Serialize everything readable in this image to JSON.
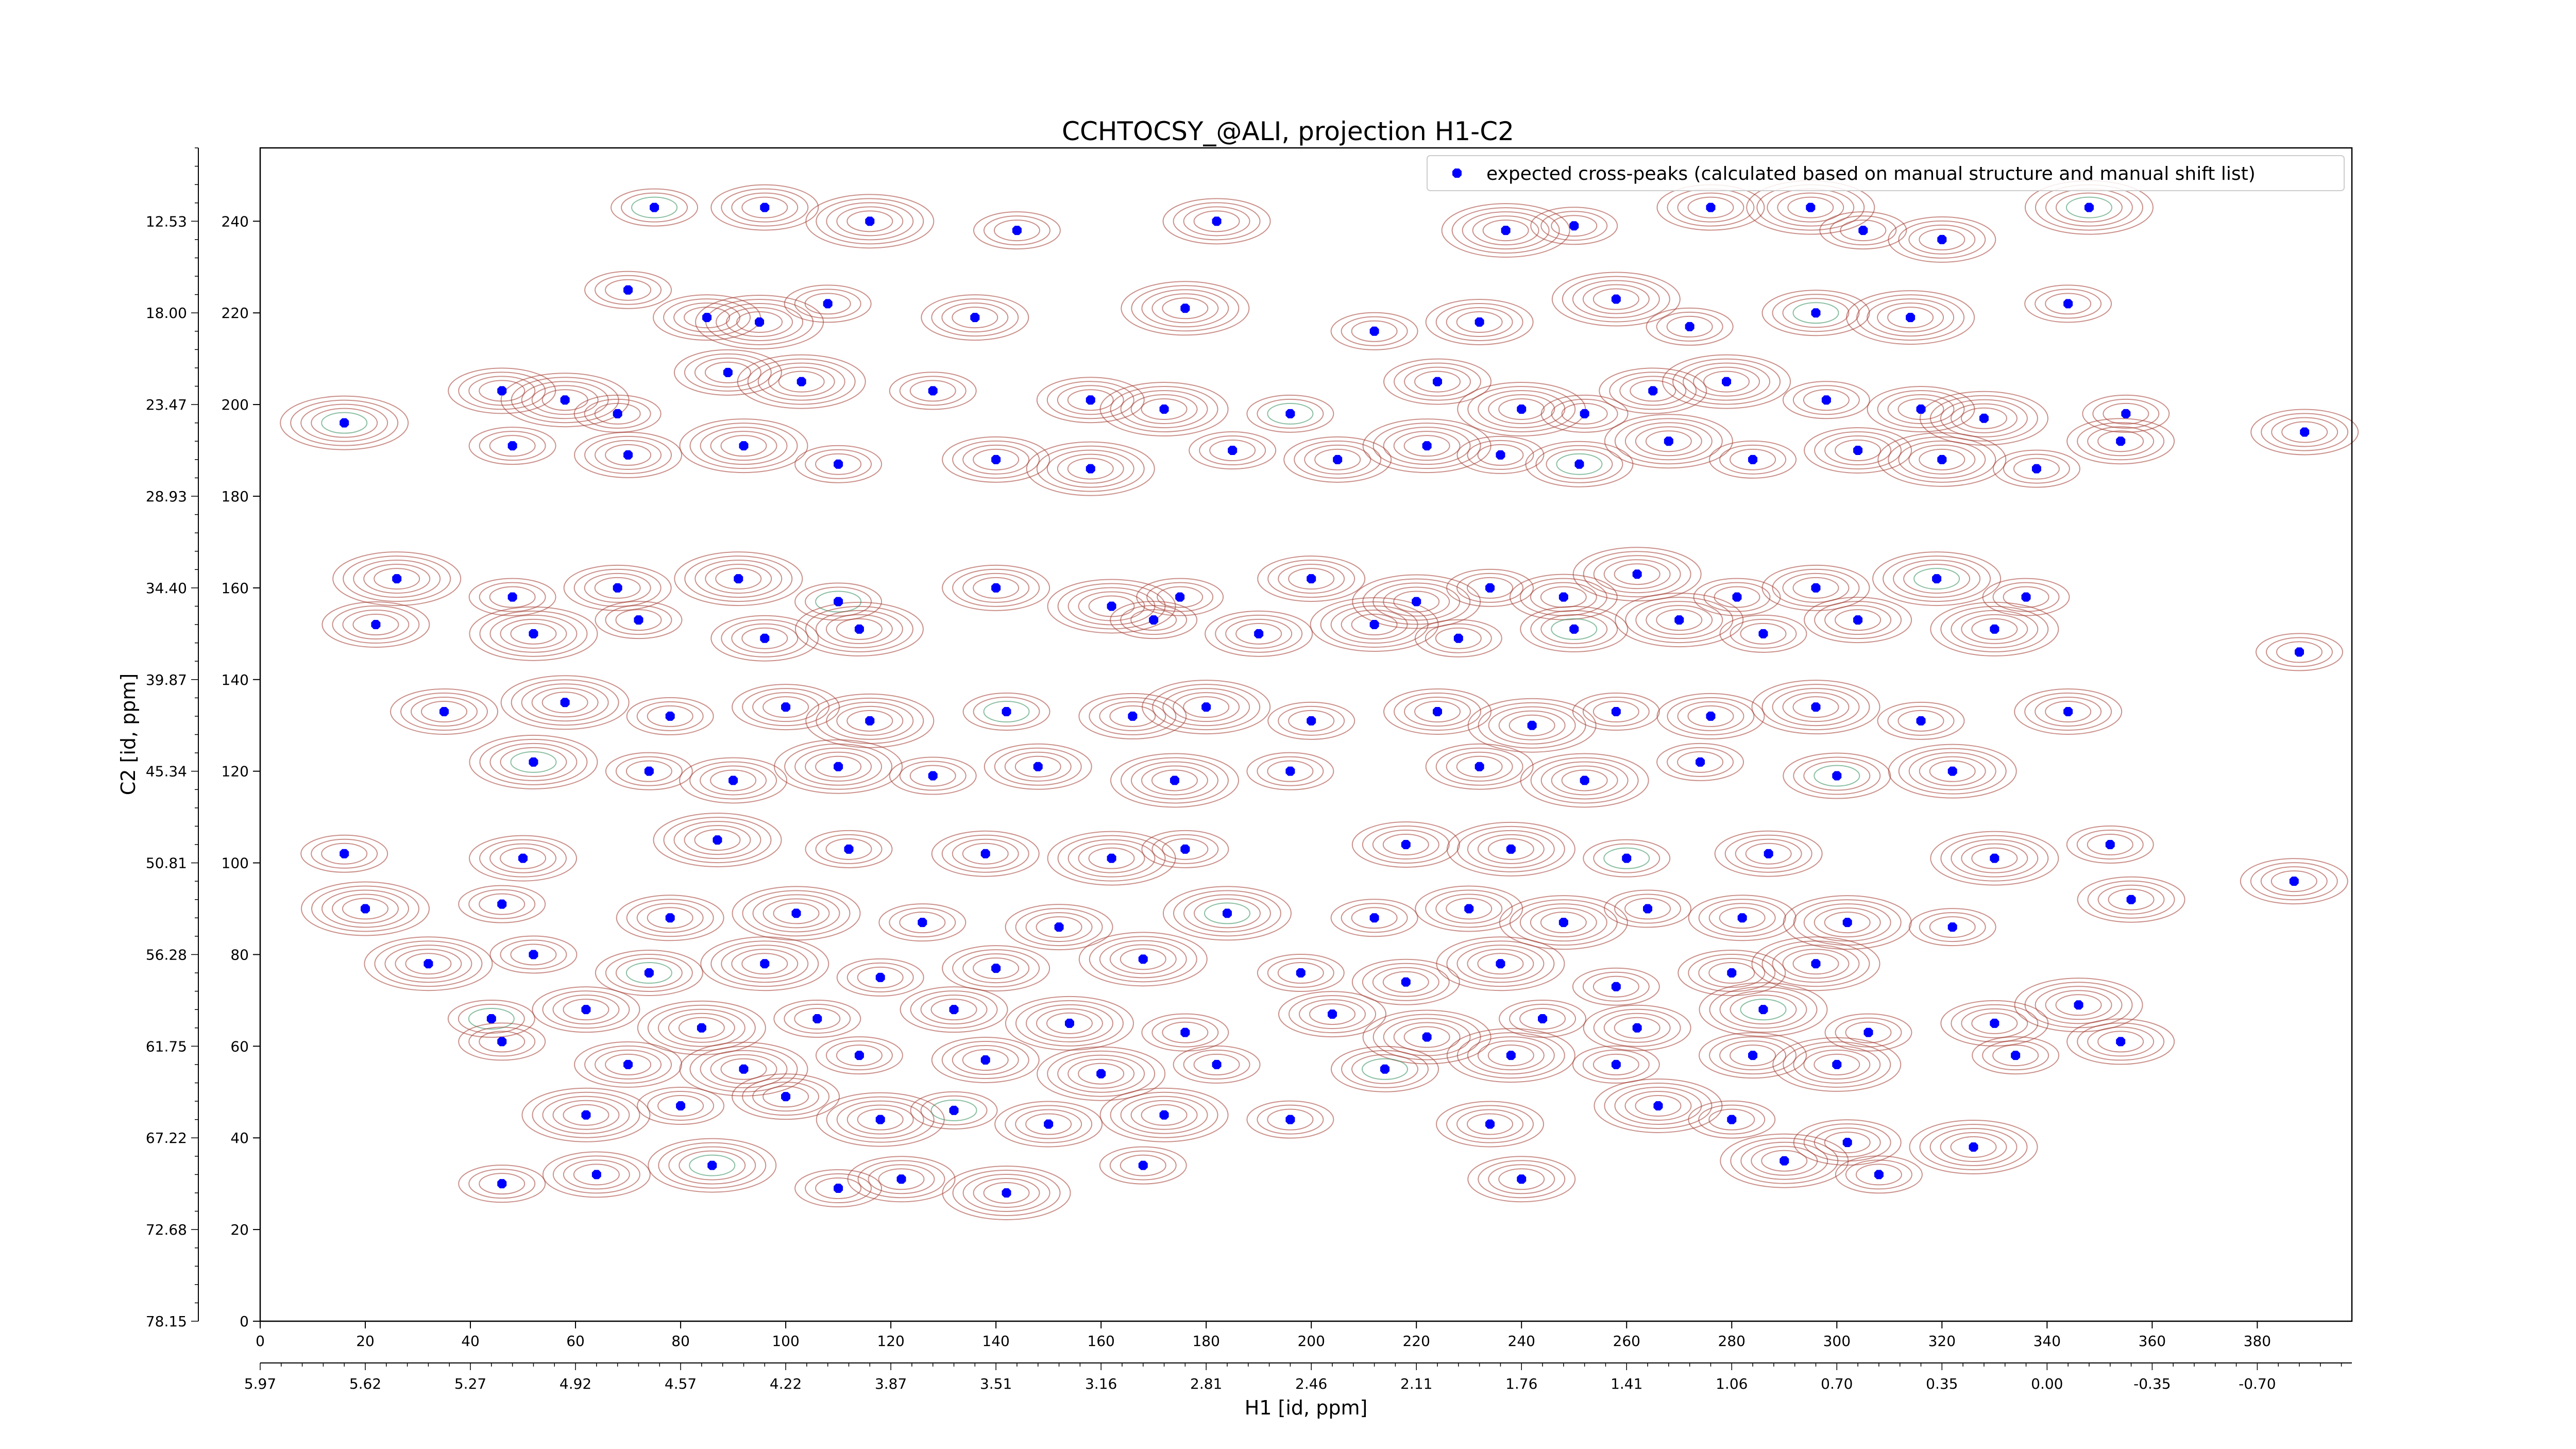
{
  "chart_data": {
    "type": "scatter",
    "title": "CCHTOCSY_@ALI, projection H1-C2",
    "xlabel": "H1 [id, ppm]",
    "ylabel": "C2 [id, ppm]",
    "xlim": [
      0,
      398
    ],
    "ylim": [
      0,
      256
    ],
    "x_ticks": [
      0,
      20,
      40,
      60,
      80,
      100,
      120,
      140,
      160,
      180,
      200,
      220,
      240,
      260,
      280,
      300,
      320,
      340,
      360,
      380
    ],
    "y_ticks": [
      0,
      20,
      40,
      60,
      80,
      100,
      120,
      140,
      160,
      180,
      200,
      220,
      240
    ],
    "x_ppm_ticks": [
      "5.97",
      "5.62",
      "5.27",
      "4.92",
      "4.57",
      "4.22",
      "3.87",
      "3.51",
      "3.16",
      "2.81",
      "2.46",
      "2.11",
      "1.76",
      "1.41",
      "1.06",
      "0.70",
      "0.35",
      "0.00",
      "-0.35",
      "-0.70"
    ],
    "y_ppm_ticks": [
      "78.15",
      "72.68",
      "67.22",
      "61.75",
      "56.28",
      "50.81",
      "45.34",
      "39.87",
      "34.40",
      "28.93",
      "23.47",
      "18.00",
      "12.53"
    ],
    "legend": {
      "label": "expected cross-peaks (calculated based on manual structure and manual shift list)",
      "position": "top-right"
    },
    "grid": false,
    "colors": {
      "markers": "#0000ff",
      "positive_contours": "#a0362b",
      "negative_contours": "#2e8b57"
    },
    "series": [
      {
        "name": "expected cross-peaks (calculated based on manual structure and manual shift list)",
        "points": [
          [
            75,
            243
          ],
          [
            96,
            243
          ],
          [
            116,
            240
          ],
          [
            144,
            238
          ],
          [
            182,
            240
          ],
          [
            237,
            238
          ],
          [
            250,
            239
          ],
          [
            276,
            243
          ],
          [
            295,
            243
          ],
          [
            305,
            238
          ],
          [
            320,
            236
          ],
          [
            348,
            243
          ],
          [
            70,
            225
          ],
          [
            85,
            219
          ],
          [
            95,
            218
          ],
          [
            108,
            222
          ],
          [
            136,
            219
          ],
          [
            176,
            221
          ],
          [
            212,
            216
          ],
          [
            232,
            218
          ],
          [
            258,
            223
          ],
          [
            272,
            217
          ],
          [
            296,
            220
          ],
          [
            314,
            219
          ],
          [
            344,
            222
          ],
          [
            46,
            203
          ],
          [
            58,
            201
          ],
          [
            68,
            198
          ],
          [
            89,
            207
          ],
          [
            103,
            205
          ],
          [
            128,
            203
          ],
          [
            158,
            201
          ],
          [
            172,
            199
          ],
          [
            196,
            198
          ],
          [
            224,
            205
          ],
          [
            240,
            199
          ],
          [
            252,
            198
          ],
          [
            265,
            203
          ],
          [
            279,
            205
          ],
          [
            298,
            201
          ],
          [
            316,
            199
          ],
          [
            328,
            197
          ],
          [
            355,
            198
          ],
          [
            389,
            194
          ],
          [
            16,
            196
          ],
          [
            48,
            191
          ],
          [
            70,
            189
          ],
          [
            92,
            191
          ],
          [
            110,
            187
          ],
          [
            140,
            188
          ],
          [
            158,
            186
          ],
          [
            185,
            190
          ],
          [
            205,
            188
          ],
          [
            222,
            191
          ],
          [
            236,
            189
          ],
          [
            251,
            187
          ],
          [
            268,
            192
          ],
          [
            284,
            188
          ],
          [
            304,
            190
          ],
          [
            320,
            188
          ],
          [
            338,
            186
          ],
          [
            354,
            192
          ],
          [
            26,
            162
          ],
          [
            48,
            158
          ],
          [
            68,
            160
          ],
          [
            91,
            162
          ],
          [
            110,
            157
          ],
          [
            140,
            160
          ],
          [
            162,
            156
          ],
          [
            175,
            158
          ],
          [
            200,
            162
          ],
          [
            220,
            157
          ],
          [
            234,
            160
          ],
          [
            248,
            158
          ],
          [
            262,
            163
          ],
          [
            281,
            158
          ],
          [
            296,
            160
          ],
          [
            319,
            162
          ],
          [
            336,
            158
          ],
          [
            22,
            152
          ],
          [
            52,
            150
          ],
          [
            72,
            153
          ],
          [
            96,
            149
          ],
          [
            114,
            151
          ],
          [
            170,
            153
          ],
          [
            190,
            150
          ],
          [
            212,
            152
          ],
          [
            228,
            149
          ],
          [
            250,
            151
          ],
          [
            270,
            153
          ],
          [
            286,
            150
          ],
          [
            304,
            153
          ],
          [
            330,
            151
          ],
          [
            388,
            146
          ],
          [
            35,
            133
          ],
          [
            58,
            135
          ],
          [
            78,
            132
          ],
          [
            100,
            134
          ],
          [
            116,
            131
          ],
          [
            142,
            133
          ],
          [
            166,
            132
          ],
          [
            180,
            134
          ],
          [
            200,
            131
          ],
          [
            224,
            133
          ],
          [
            242,
            130
          ],
          [
            258,
            133
          ],
          [
            276,
            132
          ],
          [
            296,
            134
          ],
          [
            316,
            131
          ],
          [
            344,
            133
          ],
          [
            52,
            122
          ],
          [
            74,
            120
          ],
          [
            90,
            118
          ],
          [
            110,
            121
          ],
          [
            128,
            119
          ],
          [
            148,
            121
          ],
          [
            174,
            118
          ],
          [
            196,
            120
          ],
          [
            232,
            121
          ],
          [
            252,
            118
          ],
          [
            274,
            122
          ],
          [
            300,
            119
          ],
          [
            322,
            120
          ],
          [
            16,
            102
          ],
          [
            50,
            101
          ],
          [
            87,
            105
          ],
          [
            112,
            103
          ],
          [
            138,
            102
          ],
          [
            162,
            101
          ],
          [
            176,
            103
          ],
          [
            218,
            104
          ],
          [
            238,
            103
          ],
          [
            260,
            101
          ],
          [
            287,
            102
          ],
          [
            330,
            101
          ],
          [
            352,
            104
          ],
          [
            387,
            96
          ],
          [
            20,
            90
          ],
          [
            46,
            91
          ],
          [
            78,
            88
          ],
          [
            102,
            89
          ],
          [
            126,
            87
          ],
          [
            152,
            86
          ],
          [
            184,
            89
          ],
          [
            212,
            88
          ],
          [
            230,
            90
          ],
          [
            248,
            87
          ],
          [
            264,
            90
          ],
          [
            282,
            88
          ],
          [
            302,
            87
          ],
          [
            322,
            86
          ],
          [
            356,
            92
          ],
          [
            32,
            78
          ],
          [
            52,
            80
          ],
          [
            74,
            76
          ],
          [
            96,
            78
          ],
          [
            118,
            75
          ],
          [
            140,
            77
          ],
          [
            168,
            79
          ],
          [
            198,
            76
          ],
          [
            218,
            74
          ],
          [
            236,
            78
          ],
          [
            258,
            73
          ],
          [
            280,
            76
          ],
          [
            296,
            78
          ],
          [
            44,
            66
          ],
          [
            62,
            68
          ],
          [
            84,
            64
          ],
          [
            106,
            66
          ],
          [
            132,
            68
          ],
          [
            154,
            65
          ],
          [
            176,
            63
          ],
          [
            204,
            67
          ],
          [
            222,
            62
          ],
          [
            244,
            66
          ],
          [
            262,
            64
          ],
          [
            286,
            68
          ],
          [
            306,
            63
          ],
          [
            330,
            65
          ],
          [
            346,
            69
          ],
          [
            46,
            61
          ],
          [
            70,
            56
          ],
          [
            92,
            55
          ],
          [
            114,
            58
          ],
          [
            138,
            57
          ],
          [
            160,
            54
          ],
          [
            182,
            56
          ],
          [
            214,
            55
          ],
          [
            238,
            58
          ],
          [
            258,
            56
          ],
          [
            284,
            58
          ],
          [
            300,
            56
          ],
          [
            334,
            58
          ],
          [
            354,
            61
          ],
          [
            62,
            45
          ],
          [
            80,
            47
          ],
          [
            100,
            49
          ],
          [
            118,
            44
          ],
          [
            132,
            46
          ],
          [
            150,
            43
          ],
          [
            172,
            45
          ],
          [
            196,
            44
          ],
          [
            234,
            43
          ],
          [
            266,
            47
          ],
          [
            280,
            44
          ],
          [
            302,
            39
          ],
          [
            326,
            38
          ],
          [
            46,
            30
          ],
          [
            64,
            32
          ],
          [
            86,
            34
          ],
          [
            110,
            29
          ],
          [
            122,
            31
          ],
          [
            142,
            28
          ],
          [
            168,
            34
          ],
          [
            240,
            31
          ],
          [
            290,
            35
          ],
          [
            308,
            32
          ]
        ]
      }
    ]
  }
}
